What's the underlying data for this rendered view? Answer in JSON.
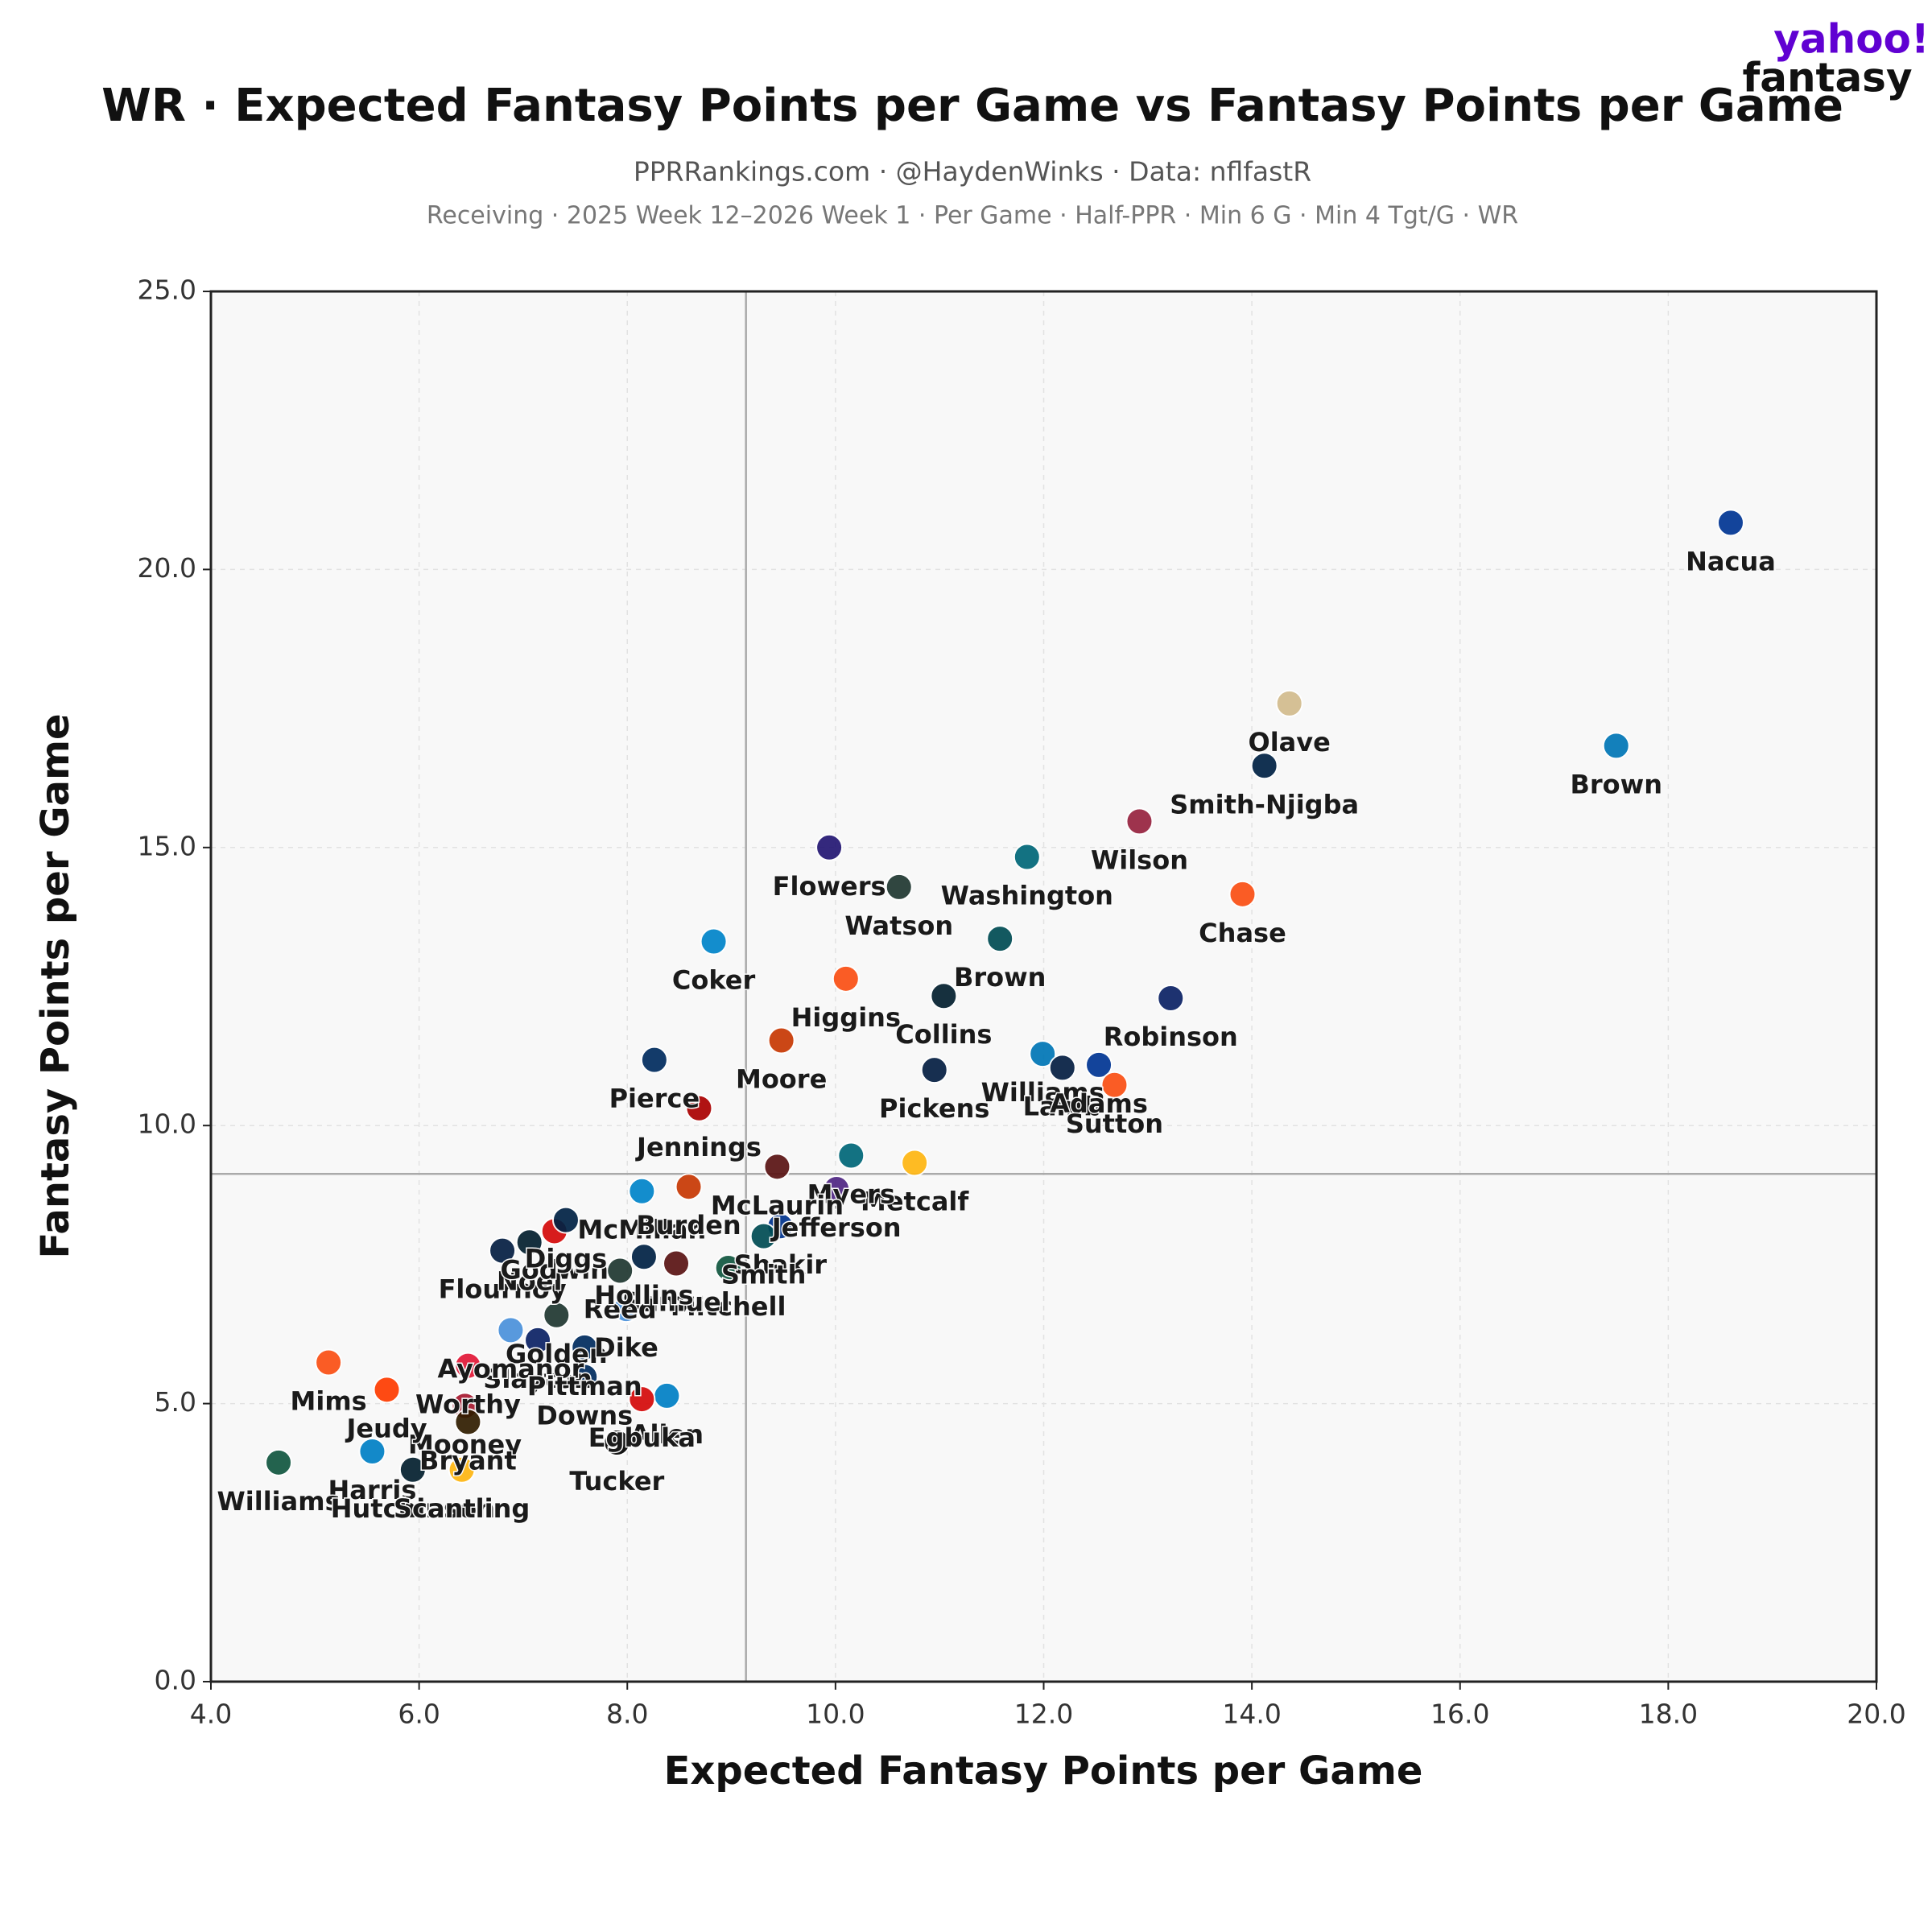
{
  "chart_data": {
    "type": "scatter",
    "logo": [
      "yahoo!",
      "fantasy"
    ],
    "title": "WR · Expected Fantasy Points per Game vs Fantasy Points per Game",
    "subtitle": "PPRRankings.com · @HaydenWinks · Data: nflfastR",
    "caption": "Receiving · 2025 Week 12–2026 Week 1 · Per Game · Half-PPR · Min 6 G · Min 4 Tgt/G · WR",
    "xlabel": "Expected Fantasy Points per Game",
    "ylabel": "Fantasy Points per Game",
    "xlim": [
      4,
      20
    ],
    "ylim": [
      0,
      25
    ],
    "xticks": [
      {
        "value": 4,
        "label": "4.0"
      },
      {
        "value": 6,
        "label": "6.0"
      },
      {
        "value": 8,
        "label": "8.0"
      },
      {
        "value": 10,
        "label": "10.0"
      },
      {
        "value": 12,
        "label": "12.0"
      },
      {
        "value": 14,
        "label": "14.0"
      },
      {
        "value": 16,
        "label": "16.0"
      },
      {
        "value": 18,
        "label": "18.0"
      },
      {
        "value": 20,
        "label": "20.0"
      }
    ],
    "yticks": [
      {
        "value": 0,
        "label": "0.0"
      },
      {
        "value": 5,
        "label": "5.0"
      },
      {
        "value": 10,
        "label": "10.0"
      },
      {
        "value": 15,
        "label": "15.0"
      },
      {
        "value": 20,
        "label": "20.0"
      },
      {
        "value": 25,
        "label": "25.0"
      }
    ],
    "grid": true,
    "reference_x": 9.14,
    "reference_y": 9.13,
    "series": [
      {
        "labels": [
          "Nacua",
          "Olave",
          "Brown",
          "Smith-Njigba",
          "Wilson",
          "Washington",
          "Flowers",
          "Watson",
          "Chase",
          "Coker",
          "Brown",
          "Higgins",
          "Robinson",
          "Collins",
          "Moore",
          "Pierce",
          "Pickens",
          "Williams",
          "Lamb",
          "Adams",
          "Sutton",
          "Jennings",
          "Metcalf",
          "Myers",
          "McLaurin",
          "McMillan",
          "Burden",
          "Jefferson",
          "Shakir",
          "Smith",
          "Mitchell",
          "Samuel",
          "Flournoy",
          "Noel",
          "Godwin",
          "Diggs",
          "Reed",
          "Hollins",
          "Golden",
          "Slayton",
          "Ayomanor",
          "Dike",
          "Pittman",
          "Downs",
          "Allen",
          "Egbuka",
          "Tucker",
          "Worthy",
          "Mooney",
          "Mims",
          "Jeudy",
          "Harris",
          "Williams",
          "Hutchinson",
          "Scantling",
          "Bryant"
        ],
        "x": [
          18.6,
          14.36,
          17.5,
          14.12,
          12.92,
          11.84,
          9.94,
          10.61,
          13.91,
          8.83,
          11.58,
          10.1,
          13.22,
          11.04,
          9.48,
          8.26,
          10.95,
          11.99,
          12.18,
          12.53,
          12.68,
          8.69,
          10.76,
          10.15,
          9.44,
          8.14,
          8.59,
          10.01,
          9.47,
          9.31,
          8.97,
          8.47,
          6.8,
          7.06,
          7.3,
          7.41,
          7.93,
          8.16,
          7.32,
          7.14,
          6.88,
          7.99,
          7.59,
          7.59,
          8.38,
          8.14,
          7.9,
          6.47,
          6.44,
          5.13,
          5.69,
          5.55,
          4.65,
          5.94,
          6.41,
          6.47
        ],
        "values": [
          20.84,
          17.59,
          16.83,
          16.47,
          15.47,
          14.83,
          15.0,
          14.29,
          14.16,
          13.31,
          13.36,
          12.64,
          12.29,
          12.33,
          11.53,
          11.18,
          11.0,
          11.29,
          11.04,
          11.09,
          10.73,
          10.31,
          9.33,
          9.46,
          9.26,
          8.82,
          8.9,
          8.86,
          8.19,
          8.01,
          7.44,
          7.52,
          7.75,
          7.9,
          8.1,
          8.3,
          7.39,
          7.64,
          6.59,
          6.14,
          6.32,
          6.7,
          6.01,
          5.48,
          5.14,
          5.08,
          4.3,
          5.68,
          4.96,
          5.74,
          5.25,
          4.14,
          3.94,
          3.81,
          3.81,
          4.67
        ],
        "colors": [
          "#003594",
          "#D3BC8D",
          "#0076B6",
          "#002244",
          "#97233F",
          "#006778",
          "#241773",
          "#203731",
          "#FB4F14",
          "#0085CA",
          "#004C54",
          "#FB4F14",
          "#0B2265",
          "#03202F",
          "#C83803",
          "#002C5F",
          "#041E42",
          "#0076B6",
          "#041E42",
          "#003594",
          "#FB4F14",
          "#AA0000",
          "#FFB612",
          "#006778",
          "#5A1414",
          "#0085CA",
          "#C83803",
          "#4F2683",
          "#00338D",
          "#004C54",
          "#125740",
          "#5A1414",
          "#041E42",
          "#03202F",
          "#D50A0A",
          "#002244",
          "#203731",
          "#002244",
          "#203731",
          "#0B2265",
          "#4B92DB",
          "#4B92DB",
          "#002C5F",
          "#002C5F",
          "#0080C6",
          "#D50A0A",
          "#000000",
          "#E31837",
          "#A71930",
          "#FB4F14",
          "#FF3C00",
          "#0080C6",
          "#125740",
          "#03202F",
          "#FFB612",
          "#311D00"
        ]
      }
    ]
  }
}
